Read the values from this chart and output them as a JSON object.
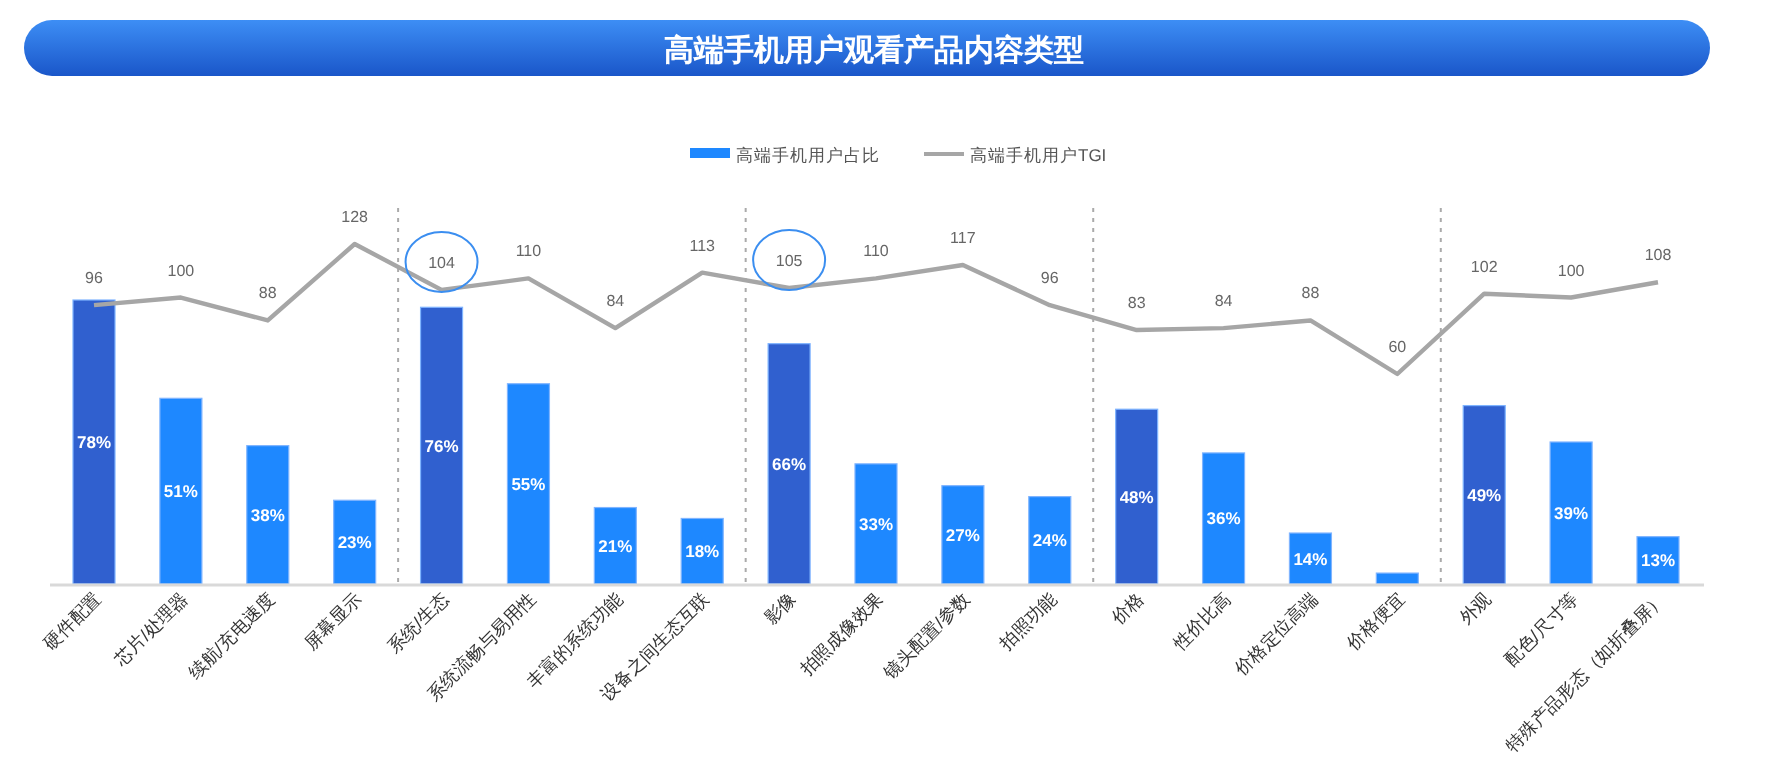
{
  "chart_data": {
    "type": "bar",
    "title": "高端手机用户观看产品内容类型",
    "legend": "top",
    "categories": [
      "硬件配置",
      "芯片/处理器",
      "续航/充电速度",
      "屏幕显示",
      "系统/生态",
      "系统流畅与易用性",
      "丰富的系统功能",
      "设备之间生态互联",
      "影像",
      "拍照成像效果",
      "镜头配置/参数",
      "拍照功能",
      "价格",
      "性价比高",
      "价格定位高端",
      "价格便宜",
      "外观",
      "配色/尺寸等",
      "特殊产品形态（如折叠屏）"
    ],
    "series": [
      {
        "name": "高端手机用户占比",
        "color": "#1e88ff",
        "colors": [
          "#3060cf",
          "#1e88ff",
          "#1e88ff",
          "#1e88ff",
          "#3060cf",
          "#1e88ff",
          "#1e88ff",
          "#1e88ff",
          "#3060cf",
          "#1e88ff",
          "#1e88ff",
          "#1e88ff",
          "#3060cf",
          "#1e88ff",
          "#1e88ff",
          "#1e88ff",
          "#3060cf",
          "#1e88ff",
          "#1e88ff"
        ],
        "values": [
          78,
          51,
          38,
          23,
          76,
          55,
          21,
          18,
          66,
          33,
          27,
          24,
          48,
          36,
          14,
          3,
          49,
          39,
          13
        ],
        "value_labels": [
          "78%",
          "51%",
          "38%",
          "23%",
          "76%",
          "55%",
          "21%",
          "18%",
          "66%",
          "33%",
          "27%",
          "24%",
          "48%",
          "36%",
          "14%",
          null,
          "49%",
          "39%",
          "13%"
        ]
      },
      {
        "name": "高端手机用户TGI",
        "type": "line",
        "axis": "y2",
        "color": "#a6a6a6",
        "values": [
          96,
          100,
          88,
          128,
          104,
          110,
          84,
          113,
          105,
          110,
          117,
          96,
          83,
          84,
          88,
          60,
          102,
          100,
          108
        ],
        "value_labels": [
          "96",
          "100",
          "88",
          "128",
          "104",
          "110",
          "84",
          "113",
          "105",
          "110",
          "117",
          "96",
          "83",
          "84",
          "88",
          "60",
          "102",
          "100",
          "108"
        ]
      }
    ]
  }
}
